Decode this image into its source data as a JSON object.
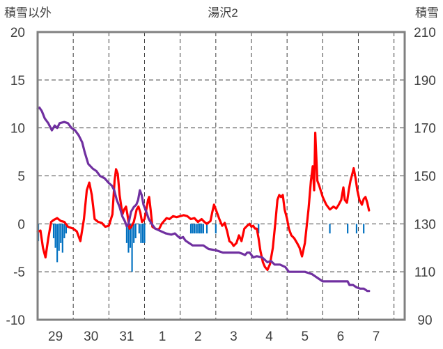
{
  "chart_data": {
    "type": "line",
    "title": "湯沢2",
    "left_axis_label": "積雪以外",
    "right_axis_label": "積雪",
    "left_ylim": [
      -10,
      20
    ],
    "left_yticks": [
      -10,
      -5,
      0,
      5,
      10,
      15,
      20
    ],
    "right_ylim": [
      90,
      210
    ],
    "right_yticks": [
      90,
      110,
      130,
      150,
      170,
      190,
      210
    ],
    "x_range_days": [
      0,
      10.3
    ],
    "x_tick_days": [
      0.5,
      1.5,
      2.5,
      3.5,
      4.5,
      5.5,
      6.5,
      7.5,
      8.5,
      9.5
    ],
    "x_tick_labels": [
      "29",
      "30",
      "31",
      "1",
      "2",
      "3",
      "4",
      "5",
      "6",
      "7"
    ],
    "day_boundaries": [
      0,
      1,
      2,
      3,
      4,
      5,
      6,
      7,
      8,
      9,
      10
    ],
    "grid": true,
    "colors": {
      "temperature": "#ff0000",
      "snow_depth": "#7030a0",
      "precipitation": "#0070c0",
      "frame": "#808080",
      "grid": "#404040"
    },
    "series": [
      {
        "key": "temperature",
        "axis": "left",
        "color": "#ff0000",
        "points": [
          [
            0,
            -0.8
          ],
          [
            0.08,
            -0.7
          ],
          [
            0.15,
            -2.5
          ],
          [
            0.22,
            -3.5
          ],
          [
            0.3,
            -1.5
          ],
          [
            0.38,
            0.2
          ],
          [
            0.45,
            0.4
          ],
          [
            0.55,
            0.6
          ],
          [
            0.65,
            0.3
          ],
          [
            0.75,
            0.2
          ],
          [
            0.85,
            -0.3
          ],
          [
            1.0,
            -0.5
          ],
          [
            1.1,
            -0.8
          ],
          [
            1.2,
            -1.8
          ],
          [
            1.3,
            0.5
          ],
          [
            1.38,
            3.5
          ],
          [
            1.45,
            4.3
          ],
          [
            1.52,
            3.0
          ],
          [
            1.6,
            0.5
          ],
          [
            1.7,
            0.2
          ],
          [
            1.8,
            0.1
          ],
          [
            1.9,
            -0.3
          ],
          [
            2.0,
            -0.2
          ],
          [
            2.1,
            1.0
          ],
          [
            2.16,
            4.5
          ],
          [
            2.2,
            5.7
          ],
          [
            2.25,
            5.2
          ],
          [
            2.3,
            3.0
          ],
          [
            2.38,
            1.0
          ],
          [
            2.43,
            1.5
          ],
          [
            2.48,
            1.8
          ],
          [
            2.52,
            1.0
          ],
          [
            2.58,
            -0.5
          ],
          [
            2.63,
            -0.3
          ],
          [
            2.7,
            0.2
          ],
          [
            2.78,
            1.5
          ],
          [
            2.83,
            1.8
          ],
          [
            2.88,
            1.2
          ],
          [
            2.93,
            0.2
          ],
          [
            3.0,
            0.5
          ],
          [
            3.05,
            1.5
          ],
          [
            3.1,
            2.5
          ],
          [
            3.13,
            2.8
          ],
          [
            3.17,
            1.5
          ],
          [
            3.22,
            -0.3
          ],
          [
            3.3,
            -0.5
          ],
          [
            3.4,
            -0.6
          ],
          [
            3.48,
            0.0
          ],
          [
            3.55,
            0.3
          ],
          [
            3.62,
            0.6
          ],
          [
            3.7,
            0.5
          ],
          [
            3.8,
            0.8
          ],
          [
            3.9,
            0.7
          ],
          [
            4.0,
            0.8
          ],
          [
            4.1,
            0.9
          ],
          [
            4.2,
            0.8
          ],
          [
            4.3,
            0.5
          ],
          [
            4.4,
            0.6
          ],
          [
            4.5,
            0.2
          ],
          [
            4.6,
            0.5
          ],
          [
            4.68,
            0.2
          ],
          [
            4.75,
            0.0
          ],
          [
            4.85,
            0.3
          ],
          [
            4.9,
            1.2
          ],
          [
            4.95,
            2.0
          ],
          [
            5.0,
            1.5
          ],
          [
            5.05,
            1.0
          ],
          [
            5.1,
            0.5
          ],
          [
            5.18,
            -0.2
          ],
          [
            5.25,
            0.1
          ],
          [
            5.32,
            -0.8
          ],
          [
            5.38,
            -1.8
          ],
          [
            5.45,
            -2.0
          ],
          [
            5.5,
            -2.3
          ],
          [
            5.58,
            -2.0
          ],
          [
            5.65,
            -1.2
          ],
          [
            5.72,
            -1.8
          ],
          [
            5.8,
            -0.5
          ],
          [
            5.88,
            -0.2
          ],
          [
            5.95,
            0.0
          ],
          [
            6.0,
            -0.3
          ],
          [
            6.05,
            -0.2
          ],
          [
            6.1,
            -0.5
          ],
          [
            6.15,
            -0.5
          ],
          [
            6.2,
            -1.5
          ],
          [
            6.25,
            -2.8
          ],
          [
            6.32,
            -4.0
          ],
          [
            6.38,
            -4.5
          ],
          [
            6.45,
            -4.8
          ],
          [
            6.52,
            -4.2
          ],
          [
            6.6,
            -2.5
          ],
          [
            6.68,
            0.5
          ],
          [
            6.73,
            2.5
          ],
          [
            6.78,
            3.0
          ],
          [
            6.83,
            2.8
          ],
          [
            6.88,
            3.0
          ],
          [
            6.93,
            1.5
          ],
          [
            7.0,
            0.5
          ],
          [
            7.05,
            -0.5
          ],
          [
            7.12,
            -1.2
          ],
          [
            7.2,
            -1.5
          ],
          [
            7.28,
            -2.0
          ],
          [
            7.35,
            -2.5
          ],
          [
            7.42,
            -3.4
          ],
          [
            7.5,
            -2.0
          ],
          [
            7.6,
            1.5
          ],
          [
            7.67,
            4.5
          ],
          [
            7.72,
            6.0
          ],
          [
            7.76,
            3.5
          ],
          [
            7.79,
            9.5
          ],
          [
            7.82,
            7.0
          ],
          [
            7.85,
            4.5
          ],
          [
            7.9,
            4.0
          ],
          [
            8.0,
            2.8
          ],
          [
            8.1,
            2.0
          ],
          [
            8.2,
            1.5
          ],
          [
            8.3,
            1.8
          ],
          [
            8.38,
            1.6
          ],
          [
            8.45,
            2.0
          ],
          [
            8.52,
            2.5
          ],
          [
            8.58,
            3.8
          ],
          [
            8.62,
            2.5
          ],
          [
            8.68,
            2.2
          ],
          [
            8.73,
            3.5
          ],
          [
            8.78,
            4.5
          ],
          [
            8.83,
            5.2
          ],
          [
            8.87,
            5.8
          ],
          [
            8.92,
            4.8
          ],
          [
            8.97,
            3.5
          ],
          [
            9.03,
            2.5
          ],
          [
            9.1,
            2.0
          ],
          [
            9.15,
            2.6
          ],
          [
            9.2,
            2.8
          ],
          [
            9.25,
            2.2
          ],
          [
            9.3,
            1.4
          ]
        ]
      },
      {
        "key": "snow_depth",
        "axis": "right",
        "color": "#7030a0",
        "points": [
          [
            0,
            178
          ],
          [
            0.05,
            178.5
          ],
          [
            0.12,
            177
          ],
          [
            0.2,
            174
          ],
          [
            0.3,
            172
          ],
          [
            0.4,
            169
          ],
          [
            0.48,
            171
          ],
          [
            0.55,
            170
          ],
          [
            0.62,
            172
          ],
          [
            0.75,
            172.5
          ],
          [
            0.85,
            172
          ],
          [
            0.95,
            170
          ],
          [
            1.05,
            169
          ],
          [
            1.15,
            167
          ],
          [
            1.25,
            164
          ],
          [
            1.32,
            160
          ],
          [
            1.42,
            155
          ],
          [
            1.55,
            153
          ],
          [
            1.65,
            152
          ],
          [
            1.75,
            150
          ],
          [
            1.88,
            149
          ],
          [
            2.0,
            147
          ],
          [
            2.08,
            146
          ],
          [
            2.15,
            144
          ],
          [
            2.22,
            140
          ],
          [
            2.3,
            137
          ],
          [
            2.38,
            133
          ],
          [
            2.45,
            131
          ],
          [
            2.5,
            129
          ],
          [
            2.55,
            130
          ],
          [
            2.62,
            135
          ],
          [
            2.7,
            137
          ],
          [
            2.77,
            138
          ],
          [
            2.82,
            140
          ],
          [
            2.87,
            144
          ],
          [
            2.92,
            142
          ],
          [
            2.97,
            138
          ],
          [
            3.05,
            135
          ],
          [
            3.12,
            132
          ],
          [
            3.2,
            130
          ],
          [
            3.3,
            128
          ],
          [
            3.45,
            127
          ],
          [
            3.6,
            126
          ],
          [
            3.75,
            125.5
          ],
          [
            3.85,
            126
          ],
          [
            3.92,
            125
          ],
          [
            4.0,
            124
          ],
          [
            4.08,
            124.5
          ],
          [
            4.15,
            123
          ],
          [
            4.25,
            122
          ],
          [
            4.35,
            121
          ],
          [
            4.5,
            121
          ],
          [
            4.65,
            121
          ],
          [
            4.8,
            119.5
          ],
          [
            5.0,
            119
          ],
          [
            5.2,
            118
          ],
          [
            5.35,
            118
          ],
          [
            5.5,
            118
          ],
          [
            5.65,
            118
          ],
          [
            5.75,
            117.5
          ],
          [
            5.82,
            117
          ],
          [
            5.88,
            118
          ],
          [
            5.95,
            118
          ],
          [
            6.05,
            116
          ],
          [
            6.15,
            116.5
          ],
          [
            6.3,
            116
          ],
          [
            6.45,
            114
          ],
          [
            6.55,
            114.5
          ],
          [
            6.65,
            113
          ],
          [
            6.8,
            113
          ],
          [
            6.95,
            112
          ],
          [
            7.05,
            110
          ],
          [
            7.2,
            110
          ],
          [
            7.35,
            110
          ],
          [
            7.5,
            110
          ],
          [
            7.6,
            109.5
          ],
          [
            7.7,
            109
          ],
          [
            7.8,
            108
          ],
          [
            7.9,
            107
          ],
          [
            8.0,
            106
          ],
          [
            8.15,
            106
          ],
          [
            8.3,
            106
          ],
          [
            8.45,
            106
          ],
          [
            8.6,
            106
          ],
          [
            8.7,
            106
          ],
          [
            8.75,
            104.5
          ],
          [
            8.85,
            104.5
          ],
          [
            8.95,
            103.5
          ],
          [
            9.05,
            103
          ],
          [
            9.15,
            103
          ],
          [
            9.25,
            102
          ],
          [
            9.3,
            102
          ]
        ]
      },
      {
        "key": "precipitation",
        "axis": "left",
        "type": "bar",
        "direction": "downward",
        "color": "#0070c0",
        "bars": [
          [
            0.02,
            1.8
          ],
          [
            0.45,
            1.5
          ],
          [
            0.5,
            2.5
          ],
          [
            0.55,
            4.0
          ],
          [
            0.6,
            2.8
          ],
          [
            0.65,
            2.0
          ],
          [
            0.7,
            3.0
          ],
          [
            0.75,
            1.5
          ],
          [
            0.8,
            1.0
          ],
          [
            2.5,
            2.0
          ],
          [
            2.55,
            3.0
          ],
          [
            2.6,
            2.5
          ],
          [
            2.65,
            5.0
          ],
          [
            2.7,
            2.0
          ],
          [
            2.75,
            1.5
          ],
          [
            2.85,
            1.0
          ],
          [
            2.9,
            2.0
          ],
          [
            2.95,
            2.0
          ],
          [
            3.0,
            2.0
          ],
          [
            4.3,
            1.0
          ],
          [
            4.35,
            1.0
          ],
          [
            4.4,
            1.0
          ],
          [
            4.45,
            1.0
          ],
          [
            4.5,
            1.0
          ],
          [
            4.55,
            1.0
          ],
          [
            4.6,
            1.0
          ],
          [
            4.65,
            1.0
          ],
          [
            4.75,
            1.0
          ],
          [
            5.0,
            1.0
          ],
          [
            6.2,
            1.0
          ],
          [
            8.2,
            1.0
          ],
          [
            8.7,
            1.0
          ],
          [
            8.95,
            1.0
          ],
          [
            9.15,
            1.0
          ]
        ]
      }
    ]
  }
}
